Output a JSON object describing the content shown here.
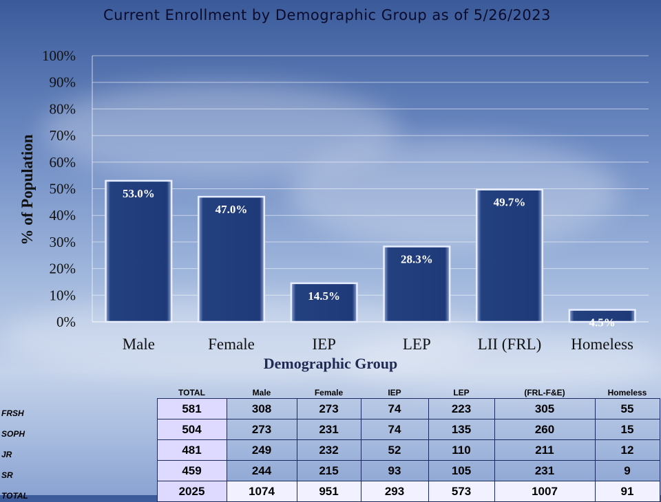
{
  "title": "Current Enrollment  by Demographic  Group  as of 5/26/2023",
  "chart_data": {
    "type": "bar",
    "title": "Current Enrollment  by Demographic  Group  as of 5/26/2023",
    "xlabel": "Demographic Group",
    "ylabel": "% of Population",
    "categories": [
      "Male",
      "Female",
      "IEP",
      "LEP",
      "LII (FRL)",
      "Homeless"
    ],
    "values": [
      53.0,
      47.0,
      14.5,
      28.3,
      49.7,
      4.5
    ],
    "data_labels": [
      "53.0%",
      "47.0%",
      "14.5%",
      "28.3%",
      "49.7%",
      "4.5%"
    ],
    "ylim": [
      0,
      100
    ],
    "yticks": [
      "0%",
      "10%",
      "20%",
      "30%",
      "40%",
      "50%",
      "60%",
      "70%",
      "80%",
      "90%",
      "100%"
    ],
    "grid": true,
    "bar_color": "#1f3a78"
  },
  "table": {
    "headers": [
      "TOTAL",
      "Male",
      "Female",
      "IEP",
      "LEP",
      "(FRL-F&E)",
      "Homeless"
    ],
    "rows": [
      {
        "label": "FRSH",
        "values": [
          "581",
          "308",
          "273",
          "74",
          "223",
          "305",
          "55"
        ]
      },
      {
        "label": "SOPH",
        "values": [
          "504",
          "273",
          "231",
          "74",
          "135",
          "260",
          "15"
        ]
      },
      {
        "label": "JR",
        "values": [
          "481",
          "249",
          "232",
          "52",
          "110",
          "211",
          "12"
        ]
      },
      {
        "label": "SR",
        "values": [
          "459",
          "244",
          "215",
          "93",
          "105",
          "231",
          "9"
        ]
      },
      {
        "label": "TOTAL",
        "values": [
          "2025",
          "1074",
          "951",
          "293",
          "573",
          "1007",
          "91"
        ]
      }
    ]
  }
}
